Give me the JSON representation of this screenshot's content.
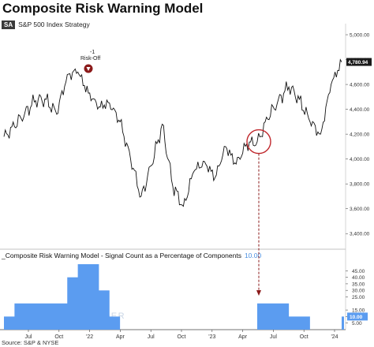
{
  "title": "Composite Risk Warning Model",
  "subtitle_badge": "SA",
  "subtitle": "S&P 500 Index  Strategy",
  "lower_legend": "_Composite Risk Warning Model - Signal Count as a Percentage of Components",
  "lower_legend_value": "10.00",
  "source": "Source: S&P & NYSE",
  "watermark": "SENTIMENTRADER",
  "colors": {
    "price_line": "#111111",
    "signal_fill": "#5b9cf0",
    "marker": "#8b1a1a",
    "circle": "#c0282d",
    "arrow": "#8b1a1a",
    "value_box": "#5b9cf0",
    "last_price_box": "#1a1a1a"
  },
  "chart_data": [
    {
      "type": "line",
      "title": "Composite Risk Warning Model",
      "x_tick_labels": [
        "Jul",
        "Oct",
        "'22",
        "Apr",
        "Jul",
        "Oct",
        "'23",
        "Apr",
        "Jul",
        "Oct",
        "'24"
      ],
      "y_ticks": [
        3400,
        3600,
        3800,
        4000,
        4200,
        4400,
        4600,
        4800,
        5000
      ],
      "y_tick_labels": [
        "3,400.00",
        "3,600.00",
        "3,800.00",
        "4,000.00",
        "4,200.00",
        "4,400.00",
        "4,600.00",
        "4,800.00",
        "5,000.00"
      ],
      "ylim": [
        3300,
        5070
      ],
      "last_value_label": "4,780.94",
      "series": [
        {
          "name": "S&P 500 Index",
          "points": [
            [
              "2021-05",
              4180
            ],
            [
              "2021-06",
              4260
            ],
            [
              "2021-07",
              4380
            ],
            [
              "2021-08",
              4470
            ],
            [
              "2021-09",
              4480
            ],
            [
              "2021-10",
              4360
            ],
            [
              "2021-11",
              4680
            ],
            [
              "2021-12",
              4700
            ],
            [
              "2022-01",
              4530
            ],
            [
              "2022-02",
              4420
            ],
            [
              "2022-03",
              4450
            ],
            [
              "2022-04",
              4300
            ],
            [
              "2022-05",
              4000
            ],
            [
              "2022-06",
              3700
            ],
            [
              "2022-07",
              3950
            ],
            [
              "2022-08",
              4280
            ],
            [
              "2022-09",
              3780
            ],
            [
              "2022-10",
              3620
            ],
            [
              "2022-11",
              3900
            ],
            [
              "2022-12",
              3980
            ],
            [
              "2023-01",
              3850
            ],
            [
              "2023-02",
              4100
            ],
            [
              "2023-03",
              3960
            ],
            [
              "2023-04",
              4120
            ],
            [
              "2023-05",
              4140
            ],
            [
              "2023-06",
              4320
            ],
            [
              "2023-07",
              4480
            ],
            [
              "2023-08",
              4580
            ],
            [
              "2023-09",
              4480
            ],
            [
              "2023-10",
              4300
            ],
            [
              "2023-11",
              4200
            ],
            [
              "2023-12",
              4600
            ],
            [
              "2024-01",
              4781
            ]
          ]
        }
      ],
      "annotations": [
        {
          "text": "-1",
          "x": "2022-01"
        },
        {
          "text": "Risk-Off",
          "x": "2022-01"
        }
      ]
    },
    {
      "type": "area",
      "title": "Composite Risk Warning Model - Signal Count as a Percentage of Components",
      "y_ticks": [
        5,
        10,
        15,
        25,
        30,
        35,
        40,
        45
      ],
      "y_tick_labels": [
        "5.00",
        "10.00",
        "15.00",
        "25.00",
        "30.00",
        "35.00",
        "40.00",
        "45.00"
      ],
      "ylim": [
        0,
        50
      ],
      "last_value_label": "10.00",
      "series": [
        {
          "name": "Signal Count %",
          "points": [
            [
              "2021-05",
              10
            ],
            [
              "2021-06",
              20
            ],
            [
              "2021-07",
              20
            ],
            [
              "2021-08",
              20
            ],
            [
              "2021-09",
              20
            ],
            [
              "2021-10",
              20
            ],
            [
              "2021-11",
              40
            ],
            [
              "2021-12",
              50
            ],
            [
              "2022-01",
              50
            ],
            [
              "2022-02",
              30
            ],
            [
              "2022-03",
              10
            ],
            [
              "2022-04",
              0
            ],
            [
              "2022-05",
              0
            ],
            [
              "2022-06",
              0
            ],
            [
              "2022-07",
              0
            ],
            [
              "2022-08",
              0
            ],
            [
              "2022-09",
              0
            ],
            [
              "2022-10",
              0
            ],
            [
              "2022-11",
              0
            ],
            [
              "2022-12",
              0
            ],
            [
              "2023-01",
              0
            ],
            [
              "2023-02",
              0
            ],
            [
              "2023-03",
              0
            ],
            [
              "2023-04",
              0
            ],
            [
              "2023-05",
              20
            ],
            [
              "2023-06",
              20
            ],
            [
              "2023-07",
              20
            ],
            [
              "2023-08",
              10
            ],
            [
              "2023-09",
              10
            ],
            [
              "2023-10",
              0
            ],
            [
              "2023-11",
              0
            ],
            [
              "2023-12",
              0
            ],
            [
              "2024-01",
              10
            ]
          ]
        }
      ]
    }
  ]
}
